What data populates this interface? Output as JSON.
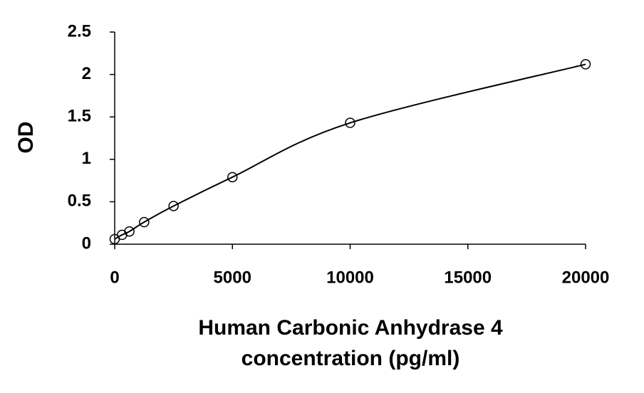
{
  "chart_data": {
    "type": "scatter",
    "xlabel": [
      "Human Carbonic Anhydrase 4",
      "concentration (pg/ml)"
    ],
    "ylabel": "OD",
    "x": [
      0,
      312.5,
      625,
      1250,
      2500,
      5000,
      10000,
      20000
    ],
    "series": [
      {
        "values": [
          0.06,
          0.11,
          0.15,
          0.26,
          0.45,
          0.79,
          1.43,
          2.12
        ],
        "color": "#000000"
      }
    ],
    "xlim": [
      0,
      20000
    ],
    "xticks": [
      0,
      5000,
      10000,
      15000,
      20000
    ],
    "ylim": [
      0,
      2.5
    ],
    "yticks": [
      0,
      0.5,
      1,
      1.5,
      2,
      2.5
    ],
    "grid": false,
    "fit_curve": true
  }
}
